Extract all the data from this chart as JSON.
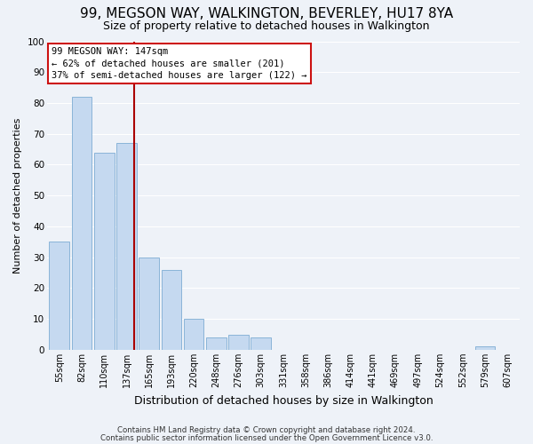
{
  "title": "99, MEGSON WAY, WALKINGTON, BEVERLEY, HU17 8YA",
  "subtitle": "Size of property relative to detached houses in Walkington",
  "xlabel": "Distribution of detached houses by size in Walkington",
  "ylabel": "Number of detached properties",
  "bar_labels": [
    "55sqm",
    "82sqm",
    "110sqm",
    "137sqm",
    "165sqm",
    "193sqm",
    "220sqm",
    "248sqm",
    "276sqm",
    "303sqm",
    "331sqm",
    "358sqm",
    "386sqm",
    "414sqm",
    "441sqm",
    "469sqm",
    "497sqm",
    "524sqm",
    "552sqm",
    "579sqm",
    "607sqm"
  ],
  "bar_values": [
    35,
    82,
    64,
    67,
    30,
    26,
    10,
    4,
    5,
    4,
    0,
    0,
    0,
    0,
    0,
    0,
    0,
    0,
    0,
    1,
    0
  ],
  "bar_color": "#c5d9f0",
  "bar_edge_color": "#8ab4d8",
  "ylim": [
    0,
    100
  ],
  "yticks": [
    0,
    10,
    20,
    30,
    40,
    50,
    60,
    70,
    80,
    90,
    100
  ],
  "vline_color": "#aa0000",
  "annotation_text_line1": "99 MEGSON WAY: 147sqm",
  "annotation_text_line2": "← 62% of detached houses are smaller (201)",
  "annotation_text_line3": "37% of semi-detached houses are larger (122) →",
  "footnote1": "Contains HM Land Registry data © Crown copyright and database right 2024.",
  "footnote2": "Contains public sector information licensed under the Open Government Licence v3.0.",
  "background_color": "#eef2f8",
  "grid_color": "#ffffff",
  "title_fontsize": 11,
  "subtitle_fontsize": 9,
  "tick_fontsize": 7,
  "ylabel_fontsize": 8,
  "xlabel_fontsize": 9
}
